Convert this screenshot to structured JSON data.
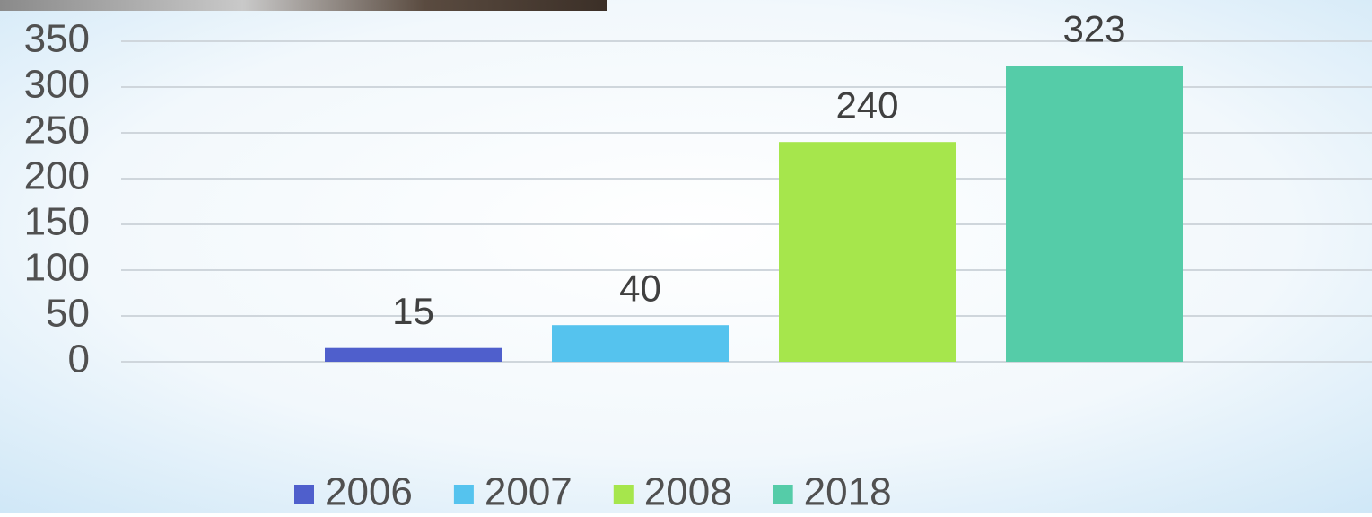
{
  "chart_data": {
    "type": "bar",
    "series": [
      {
        "name": "2006",
        "color": "#4f5fcc",
        "values": [
          15
        ]
      },
      {
        "name": "2007",
        "color": "#55c3ee",
        "values": [
          40
        ]
      },
      {
        "name": "2008",
        "color": "#a6e64c",
        "values": [
          240
        ]
      },
      {
        "name": "2018",
        "color": "#55cca8",
        "values": [
          323
        ]
      }
    ],
    "ylim": [
      0,
      350
    ],
    "yticks": [
      0,
      50,
      100,
      150,
      200,
      250,
      300,
      350
    ],
    "grid": true,
    "legend": "bottom"
  }
}
